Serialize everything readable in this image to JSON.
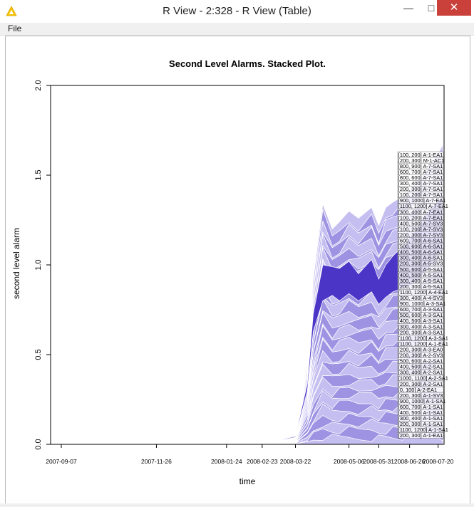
{
  "window": {
    "title": "R View - 2:328 - R View (Table)",
    "minimize_glyph": "—",
    "maximize_glyph": "□",
    "close_glyph": "✕",
    "icon": "knime-triangle-icon"
  },
  "menu": {
    "file_label": "File"
  },
  "colors": {
    "dark_band": "#4B35C7",
    "mid_band": "#9D93E2",
    "light_band": "#C5BEF0",
    "separator": "#FFFFFF"
  },
  "chart_data": {
    "type": "area",
    "stacked": true,
    "title": "Second Level Alarms. Stacked Plot.",
    "xlabel": "time",
    "ylabel": "second level alarm",
    "ylim": [
      0,
      2.0
    ],
    "xlim": [
      "2007-08-29",
      "2008-07-25"
    ],
    "yticks": [
      "0.0",
      "0.5",
      "1.0",
      "1.5",
      "2.0"
    ],
    "xticks": [
      "2007-09-07",
      "2007-11-26",
      "2008-01-24",
      "2008-02-23",
      "2008-03-22",
      "2008-05-06",
      "2008-05-31",
      "2008-06-26",
      "2008-07-20"
    ],
    "grid": false,
    "total": {
      "dates": [
        "2008-02-23",
        "2008-03-22",
        "2008-04-01",
        "2008-04-06",
        "2008-04-14",
        "2008-04-22",
        "2008-04-28",
        "2008-05-06",
        "2008-05-14",
        "2008-05-25",
        "2008-05-31",
        "2008-06-06",
        "2008-06-12",
        "2008-06-20",
        "2008-06-26",
        "2008-07-04",
        "2008-07-12",
        "2008-07-20",
        "2008-07-24"
      ],
      "values": [
        0.0,
        0.06,
        0.45,
        0.92,
        1.34,
        1.2,
        1.24,
        1.3,
        1.26,
        1.32,
        1.22,
        1.32,
        1.35,
        1.38,
        1.42,
        1.48,
        1.55,
        1.62,
        1.67
      ]
    },
    "dark_band": {
      "series": "[1100, 1200] A-4-EA1",
      "lower": [
        0.0,
        0.04,
        0.3,
        0.63,
        0.8,
        0.83,
        0.8,
        0.84,
        0.8,
        0.85,
        0.78,
        0.82,
        0.85,
        0.87,
        0.88,
        0.92,
        0.98,
        1.05,
        1.08
      ],
      "upper": [
        0.0,
        0.045,
        0.34,
        0.73,
        1.0,
        0.99,
        0.98,
        1.02,
        0.95,
        1.03,
        0.92,
        1.0,
        1.05,
        1.1,
        1.15,
        1.22,
        1.3,
        1.36,
        1.38
      ]
    },
    "legend_position": "right",
    "legend": [
      "[100, 200] A-1-EA1",
      "[200, 300] M-1-AC1",
      "[800, 900] A-7-SA1",
      "[600, 700] A-7-SA1",
      "[800, 600] A-7-SA1",
      "[300, 400] A-7-SA1",
      "[200, 300] A-7-SA1",
      "[100, 200] A-7-SA1",
      "[900, 1000] A-7-EA1",
      "[1100, 1200] A-7-EA1",
      "[300, 400] A-7-EA1",
      "[100, 200] A-7-EA1",
      "[400, 500] A-7-SV3",
      "[100, 200] A-7-SV3",
      "[200, 300] A-7-SV3",
      "[600, 700] A-6-SA1",
      "[500, 600] A-6-SA1",
      "[400, 500] A-6-SA1",
      "[300, 400] A-6-SA1",
      "[200, 300] A-5-SV3",
      "[500, 600] A-5-SA1",
      "[400, 500] A-5-SA1",
      "[300, 400] A-5-SA1",
      "[200, 300] A-5-SA1",
      "[1100, 1200] A-4-EA1",
      "[300, 400] A-4-SV3",
      "[900, 1000] A-3-SA1",
      "[600, 700] A-3-SA1",
      "[500, 600] A-3-SA1",
      "[400, 500] A-3-SA1",
      "[300, 400] A-3-SA1",
      "[200, 300] A-3-SA1",
      "[1100, 1200] A-3-SA1",
      "[1100, 1200] A-1-EA1",
      "[200, 300] A-3-EA0",
      "[200, 300] A-2-SV3",
      "[500, 600] A-2-SA1",
      "[400, 500] A-2-SA1",
      "[300, 400] A-2-SA1",
      "[1000, 1100] A-2-SA1",
      "[200, 300] A-2-SA1",
      "[0, 100] A-2-EA1",
      "[200, 300] A-1-SV3",
      "[900, 1000] A-1-SA1",
      "[600, 700] A-1-SA1",
      "[400, 500] A-1-SA1",
      "[300, 400] A-1-SA1",
      "[200, 300] A-1-SA1",
      "[1100, 1200] A-1-SA1",
      "[200, 300] A-1-EA1"
    ]
  }
}
